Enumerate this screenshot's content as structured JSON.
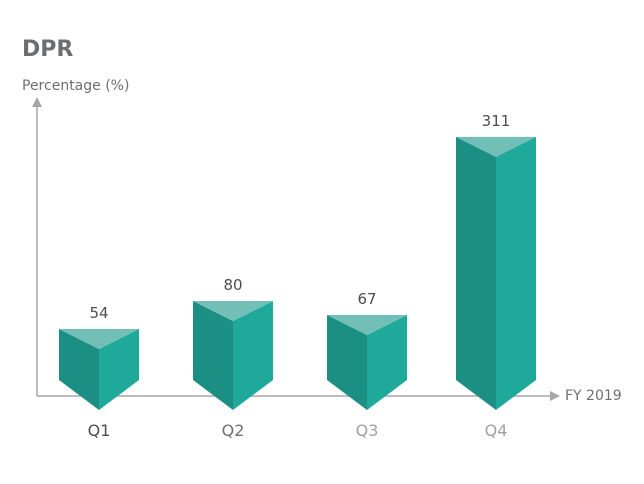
{
  "chart_data": {
    "type": "bar",
    "title": "DPR",
    "ylabel": "Percentage (%)",
    "xlabel": "FY 2019",
    "categories": [
      "Q1",
      "Q2",
      "Q3",
      "Q4"
    ],
    "values": [
      54,
      80,
      67,
      311
    ],
    "value_labels": [
      "54",
      "80",
      "67",
      "311"
    ],
    "category_label_colors": [
      "#4d4d4f",
      "#6d6e70",
      "#a0a1a3",
      "#a0a1a3"
    ],
    "ylim": [
      0,
      320
    ],
    "grid": false,
    "legend": "none",
    "colors": {
      "front_face": "#1fa99b",
      "side_face": "#1b8f83",
      "top_face": "#72bfb8",
      "axis": "#a6a6a6"
    }
  }
}
